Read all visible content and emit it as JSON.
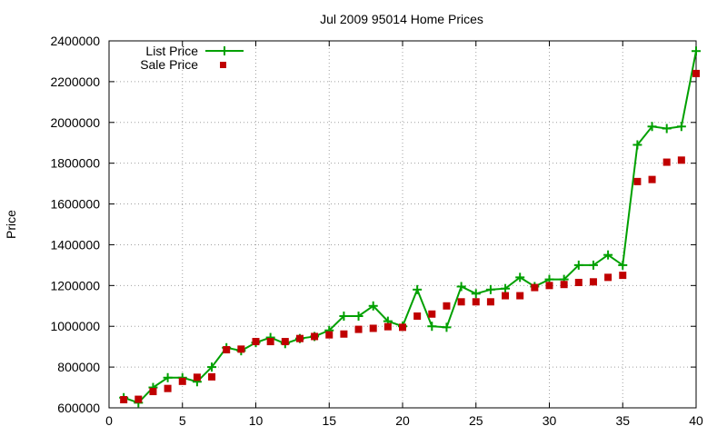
{
  "chart_data": {
    "type": "line",
    "title": "Jul 2009 95014 Home Prices",
    "xlabel": "",
    "ylabel": "Price",
    "xlim": [
      0,
      40
    ],
    "ylim": [
      600000,
      2400000
    ],
    "x_ticks": [
      0,
      5,
      10,
      15,
      20,
      25,
      30,
      35,
      40
    ],
    "y_ticks": [
      600000,
      800000,
      1000000,
      1200000,
      1400000,
      1600000,
      1800000,
      2000000,
      2200000,
      2400000
    ],
    "x_tick_labels": [
      "0",
      "5",
      "10",
      "15",
      "20",
      "25",
      "30",
      "35",
      "40"
    ],
    "y_tick_labels": [
      "600000",
      "800000",
      "1000000",
      "1200000",
      "1400000",
      "1600000",
      "1800000",
      "2000000",
      "2200000",
      "2400000"
    ],
    "grid": true,
    "legend_position": "top-left",
    "x": [
      1,
      2,
      3,
      4,
      5,
      6,
      7,
      8,
      9,
      10,
      11,
      12,
      13,
      14,
      15,
      16,
      17,
      18,
      19,
      20,
      21,
      22,
      23,
      24,
      25,
      26,
      27,
      28,
      29,
      30,
      31,
      32,
      33,
      34,
      35,
      36,
      37,
      38,
      39,
      40
    ],
    "series": [
      {
        "name": "List Price",
        "style": "linespoints",
        "color": "#00a000",
        "marker": "plus",
        "values": [
          650000,
          625000,
          700000,
          748000,
          748000,
          728000,
          800000,
          895000,
          880000,
          920000,
          945000,
          915000,
          940000,
          950000,
          980000,
          1050000,
          1050000,
          1100000,
          1025000,
          1000000,
          1180000,
          1000000,
          995000,
          1195000,
          1160000,
          1180000,
          1185000,
          1240000,
          1195000,
          1230000,
          1230000,
          1300000,
          1300000,
          1350000,
          1300000,
          1890000,
          1980000,
          1970000,
          1980000,
          2350000
        ]
      },
      {
        "name": "Sale Price",
        "style": "points",
        "color": "#c00000",
        "marker": "square",
        "values": [
          640000,
          642000,
          680000,
          695000,
          730000,
          750000,
          752000,
          885000,
          888000,
          925000,
          925000,
          925000,
          940000,
          950000,
          958000,
          962000,
          985000,
          990000,
          998000,
          995000,
          1050000,
          1060000,
          1100000,
          1120000,
          1120000,
          1120000,
          1150000,
          1150000,
          1190000,
          1200000,
          1205000,
          1215000,
          1218000,
          1240000,
          1250000,
          1710000,
          1720000,
          1805000,
          1815000,
          2240000
        ]
      }
    ]
  }
}
